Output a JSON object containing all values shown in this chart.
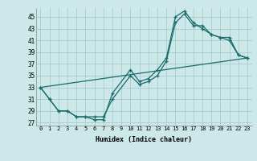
{
  "title": "",
  "xlabel": "Humidex (Indice chaleur)",
  "bg_color": "#cce8e8",
  "grid_color": "#aacccc",
  "line_color": "#1a6b6b",
  "xlim": [
    -0.5,
    23.5
  ],
  "ylim": [
    26.5,
    46.5
  ],
  "xticks": [
    0,
    1,
    2,
    3,
    4,
    5,
    6,
    7,
    8,
    9,
    10,
    11,
    12,
    13,
    14,
    15,
    16,
    17,
    18,
    19,
    20,
    21,
    22,
    23
  ],
  "yticks": [
    27,
    29,
    31,
    33,
    35,
    37,
    39,
    41,
    43,
    45
  ],
  "curve1_x": [
    0,
    1,
    2,
    3,
    4,
    5,
    6,
    7,
    8,
    10,
    11,
    12,
    13,
    14,
    15,
    16,
    17,
    18,
    19,
    20,
    21,
    22,
    23
  ],
  "curve1_y": [
    33,
    31,
    29,
    29,
    28,
    28,
    27.5,
    27.5,
    32,
    36,
    34,
    34.5,
    36,
    38,
    45,
    46,
    44,
    43,
    42,
    41.5,
    41,
    38.5,
    38
  ],
  "curve2_x": [
    0,
    1,
    2,
    3,
    4,
    5,
    6,
    7,
    8,
    10,
    11,
    12,
    13,
    14,
    15,
    16,
    17,
    18,
    19,
    20,
    21,
    22,
    23
  ],
  "curve2_y": [
    33,
    31,
    29,
    29,
    28,
    28,
    28,
    28,
    31,
    35,
    33.5,
    34,
    35,
    37.5,
    44,
    45.5,
    43.5,
    43.5,
    42,
    41.5,
    41.5,
    38.5,
    38
  ],
  "trend_x": [
    0,
    23
  ],
  "trend_y": [
    33,
    38
  ]
}
